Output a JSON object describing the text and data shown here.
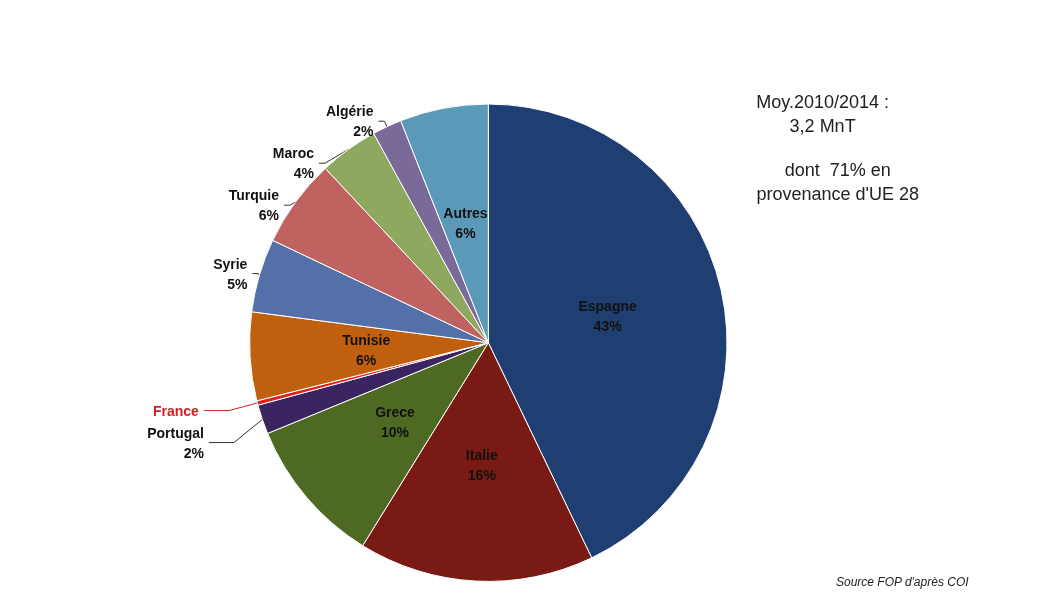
{
  "chart_data": {
    "type": "pie",
    "categories": [
      "Espagne",
      "Italie",
      "Grece",
      "Portugal",
      "France",
      "Tunisie",
      "Syrie",
      "Turquie",
      "Maroc",
      "Algérie",
      "Autres"
    ],
    "values": [
      43,
      16,
      10,
      2,
      0.3,
      6,
      5,
      6,
      4,
      2,
      6
    ],
    "value_labels": [
      "43%",
      "16%",
      "10%",
      "2%",
      null,
      "6%",
      "5%",
      "6%",
      "4%",
      "2%",
      "6%"
    ],
    "colors": [
      "#1f3f73",
      "#7a1a14",
      "#4e6a22",
      "#3b2560",
      "#e02020",
      "#c0600f",
      "#5470a8",
      "#c06260",
      "#8fa860",
      "#7a6a9a",
      "#5a9ab8"
    ],
    "annotations": [
      "Moy.2010/2014 :\n3,2 MnT",
      "dont  71% en\nprovenance d'UE 28",
      "Source FOP d'après COI"
    ],
    "legend": false
  }
}
